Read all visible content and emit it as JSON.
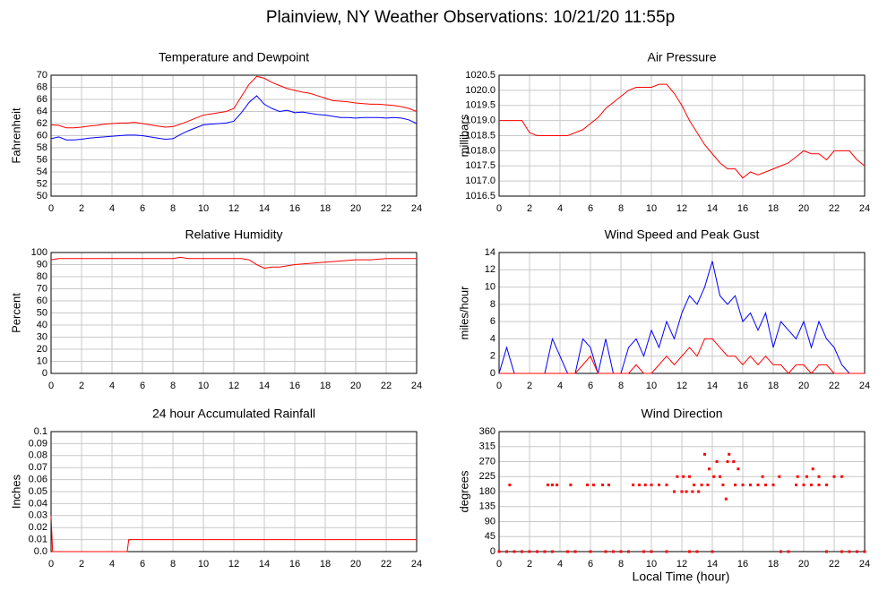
{
  "title": "Plainview, NY Weather Observations: 10/21/20 11:55p",
  "xlabel": "Local Time (hour)",
  "chart_data": [
    {
      "type": "line",
      "title": "Temperature and Dewpoint",
      "ylabel": "Fahrenheit",
      "x": [
        0,
        0.5,
        1,
        1.5,
        2,
        2.5,
        3,
        3.5,
        4,
        4.5,
        5,
        5.5,
        6,
        6.5,
        7,
        7.5,
        8,
        8.5,
        9,
        9.5,
        10,
        10.5,
        11,
        11.5,
        12,
        12.5,
        13,
        13.5,
        14,
        14.5,
        15,
        15.5,
        16,
        16.5,
        17,
        17.5,
        18,
        18.5,
        19,
        19.5,
        20,
        20.5,
        21,
        21.5,
        22,
        22.5,
        23,
        23.5,
        24
      ],
      "series": [
        {
          "color": "#ff0000",
          "values": [
            61.8,
            61.7,
            61.3,
            61.3,
            61.4,
            61.6,
            61.7,
            61.9,
            62.0,
            62.1,
            62.1,
            62.2,
            62.0,
            61.8,
            61.6,
            61.4,
            61.5,
            61.9,
            62.4,
            62.9,
            63.4,
            63.6,
            63.8,
            64.0,
            64.5,
            66.5,
            68.5,
            69.8,
            69.5,
            68.8,
            68.3,
            67.8,
            67.5,
            67.2,
            67.0,
            66.6,
            66.2,
            65.8,
            65.7,
            65.6,
            65.4,
            65.3,
            65.2,
            65.2,
            65.1,
            65.0,
            64.8,
            64.5,
            64.0
          ]
        },
        {
          "color": "#0000ff",
          "values": [
            59.5,
            59.8,
            59.3,
            59.3,
            59.4,
            59.6,
            59.7,
            59.8,
            59.9,
            60.0,
            60.1,
            60.1,
            60.0,
            59.8,
            59.6,
            59.4,
            59.5,
            60.2,
            60.8,
            61.3,
            61.8,
            61.9,
            62.0,
            62.1,
            62.4,
            63.8,
            65.5,
            66.6,
            65.2,
            64.5,
            64.0,
            64.2,
            63.8,
            63.9,
            63.7,
            63.5,
            63.4,
            63.2,
            63.0,
            63.0,
            62.9,
            63.0,
            63.0,
            63.0,
            62.9,
            63.0,
            62.9,
            62.6,
            62.0
          ]
        }
      ],
      "xlim": [
        0,
        24
      ],
      "xticks": [
        0,
        2,
        4,
        6,
        8,
        10,
        12,
        14,
        16,
        18,
        20,
        22,
        24
      ],
      "ylim": [
        50,
        70
      ],
      "yticks": [
        50,
        52,
        54,
        56,
        58,
        60,
        62,
        64,
        66,
        68,
        70
      ],
      "grid": true
    },
    {
      "type": "line",
      "title": "Air Pressure",
      "ylabel": "millibars",
      "x": [
        0,
        0.5,
        1,
        1.5,
        2,
        2.5,
        3,
        3.5,
        4,
        4.5,
        5,
        5.5,
        6,
        6.5,
        7,
        7.5,
        8,
        8.5,
        9,
        9.5,
        10,
        10.5,
        11,
        11.5,
        12,
        12.5,
        13,
        13.5,
        14,
        14.5,
        15,
        15.5,
        16,
        16.5,
        17,
        17.5,
        18,
        18.5,
        19,
        19.5,
        20,
        20.5,
        21,
        21.5,
        22,
        22.5,
        23,
        23.5,
        24
      ],
      "series": [
        {
          "color": "#ff0000",
          "values": [
            1019.0,
            1019.0,
            1019.0,
            1019.0,
            1018.6,
            1018.5,
            1018.5,
            1018.5,
            1018.5,
            1018.5,
            1018.6,
            1018.7,
            1018.9,
            1019.1,
            1019.4,
            1019.6,
            1019.8,
            1020.0,
            1020.1,
            1020.1,
            1020.1,
            1020.2,
            1020.2,
            1019.9,
            1019.5,
            1019.0,
            1018.6,
            1018.2,
            1017.9,
            1017.6,
            1017.4,
            1017.4,
            1017.1,
            1017.3,
            1017.2,
            1017.3,
            1017.4,
            1017.5,
            1017.6,
            1017.8,
            1018.0,
            1017.9,
            1017.9,
            1017.7,
            1018.0,
            1018.0,
            1018.0,
            1017.7,
            1017.5
          ]
        }
      ],
      "xlim": [
        0,
        24
      ],
      "xticks": [
        0,
        2,
        4,
        6,
        8,
        10,
        12,
        14,
        16,
        18,
        20,
        22,
        24
      ],
      "ylim": [
        1016.5,
        1020.5
      ],
      "yticks": [
        1016.5,
        {
          "value": 1017,
          "label": "1017.0"
        },
        1017.5,
        {
          "value": 1018,
          "label": "1018.0"
        },
        1018.5,
        {
          "value": 1019,
          "label": "1019.0"
        },
        1019.5,
        {
          "value": 1020,
          "label": "1020.0"
        },
        1020.5
      ],
      "grid": true
    },
    {
      "type": "line",
      "title": "Relative Humidity",
      "ylabel": "Percent",
      "x": [
        0,
        0.5,
        2,
        4,
        6,
        8,
        8.5,
        9,
        10,
        12,
        12.5,
        13,
        13.5,
        14,
        14.5,
        15,
        15.5,
        16,
        17,
        18,
        19,
        20,
        21,
        22,
        23,
        24
      ],
      "series": [
        {
          "color": "#ff0000",
          "values": [
            94,
            95,
            95,
            95,
            95,
            95,
            96,
            95,
            95,
            95,
            95,
            94,
            90,
            87,
            88,
            88,
            89,
            90,
            91,
            92,
            93,
            94,
            94,
            95,
            95,
            95
          ]
        }
      ],
      "xlim": [
        0,
        24
      ],
      "xticks": [
        0,
        2,
        4,
        6,
        8,
        10,
        12,
        14,
        16,
        18,
        20,
        22,
        24
      ],
      "ylim": [
        0,
        100
      ],
      "yticks": [
        0,
        10,
        20,
        30,
        40,
        50,
        60,
        70,
        80,
        90,
        100
      ],
      "grid": true
    },
    {
      "type": "line",
      "title": "Wind Speed and Peak Gust",
      "ylabel": "miles/hour",
      "x": [
        0,
        0.5,
        1,
        1.5,
        2,
        2.5,
        3,
        3.5,
        4,
        4.5,
        5,
        5.5,
        6,
        6.5,
        7,
        7.5,
        8,
        8.5,
        9,
        9.5,
        10,
        10.5,
        11,
        11.5,
        12,
        12.5,
        13,
        13.5,
        14,
        14.5,
        15,
        15.5,
        16,
        16.5,
        17,
        17.5,
        18,
        18.5,
        19,
        19.5,
        20,
        20.5,
        21,
        21.5,
        22,
        22.5,
        23,
        23.5,
        24
      ],
      "series": [
        {
          "color": "#0000ff",
          "values": [
            0,
            3,
            0,
            0,
            0,
            0,
            0,
            4,
            2,
            0,
            0,
            4,
            3,
            0,
            4,
            0,
            0,
            3,
            4,
            2,
            5,
            3,
            6,
            4,
            7,
            9,
            8,
            10,
            13,
            9,
            8,
            9,
            6,
            7,
            5,
            7,
            3,
            6,
            5,
            4,
            6,
            3,
            6,
            4,
            3,
            1,
            0,
            0,
            0
          ]
        },
        {
          "color": "#ff0000",
          "values": [
            0,
            0,
            0,
            0,
            0,
            0,
            0,
            0,
            0,
            0,
            0,
            1,
            2,
            0,
            0,
            0,
            0,
            0,
            1,
            0,
            0,
            1,
            2,
            1,
            2,
            3,
            2,
            4,
            4,
            3,
            2,
            2,
            1,
            2,
            1,
            2,
            1,
            1,
            0,
            1,
            1,
            0,
            1,
            1,
            0,
            0,
            0,
            0,
            0
          ]
        }
      ],
      "xlim": [
        0,
        24
      ],
      "xticks": [
        0,
        2,
        4,
        6,
        8,
        10,
        12,
        14,
        16,
        18,
        20,
        22,
        24
      ],
      "ylim": [
        0,
        14
      ],
      "yticks": [
        0,
        2,
        4,
        6,
        8,
        10,
        12,
        14
      ],
      "grid": true
    },
    {
      "type": "line",
      "title": "24 hour Accumulated Rainfall",
      "ylabel": "Inches",
      "x": [
        0,
        0.1,
        5,
        5.1,
        24
      ],
      "series": [
        {
          "color": "#ff0000",
          "values": [
            0.03,
            0,
            0,
            0.01,
            0.01
          ]
        }
      ],
      "xlim": [
        0,
        24
      ],
      "xticks": [
        0,
        2,
        4,
        6,
        8,
        10,
        12,
        14,
        16,
        18,
        20,
        22,
        24
      ],
      "ylim": [
        0,
        0.1
      ],
      "yticks": [
        {
          "value": 0,
          "label": "0.0"
        },
        0.01,
        0.02,
        0.03,
        0.04,
        0.05,
        0.06,
        0.07,
        0.08,
        0.09,
        0.1
      ],
      "grid": true
    },
    {
      "type": "scatter",
      "title": "Wind Direction",
      "ylabel": "degrees",
      "x": [
        0,
        0.5,
        1,
        1.5,
        2,
        2.5,
        3,
        3.5,
        4.5,
        5,
        6,
        7,
        7.5,
        8,
        8.5,
        9.5,
        10,
        11,
        12.5,
        13,
        14,
        18.5,
        19,
        21.5,
        22.5,
        23,
        23.5,
        24,
        0.7,
        3.2,
        3.5,
        3.8,
        4.7,
        5.8,
        6.2,
        6.8,
        7.2,
        8.8,
        9.2,
        9.6,
        10,
        10.5,
        11,
        12.8,
        13.3,
        13.7,
        14.7,
        15.5,
        16,
        16.5,
        17,
        17.5,
        18,
        19.5,
        20,
        20.5,
        21,
        21.5,
        11.7,
        12.1,
        12.5,
        14.1,
        14.5,
        17.3,
        18.4,
        19.6,
        20.2,
        21,
        22,
        22.5,
        11.5,
        12,
        12.3,
        12.7,
        13.1,
        14.3,
        15,
        15.4,
        13.5,
        15.1,
        13.8,
        15.7,
        20.6,
        14.9
      ],
      "series": [
        {
          "color": "#ff0000",
          "values": [
            0,
            0,
            0,
            0,
            0,
            0,
            0,
            0,
            0,
            0,
            0,
            0,
            0,
            0,
            0,
            0,
            0,
            0,
            0,
            0,
            0,
            0,
            0,
            0,
            0,
            0,
            0,
            0,
            200,
            200,
            200,
            200,
            200,
            200,
            200,
            200,
            200,
            200,
            200,
            200,
            200,
            200,
            200,
            200,
            200,
            200,
            200,
            200,
            200,
            200,
            200,
            200,
            200,
            200,
            200,
            200,
            200,
            200,
            225,
            225,
            225,
            225,
            225,
            225,
            225,
            225,
            225,
            225,
            225,
            225,
            180,
            180,
            180,
            180,
            180,
            270,
            270,
            270,
            292,
            292,
            248,
            248,
            248,
            158
          ]
        }
      ],
      "xlim": [
        0,
        24
      ],
      "xticks": [
        0,
        2,
        4,
        6,
        8,
        10,
        12,
        14,
        16,
        18,
        20,
        22,
        24
      ],
      "ylim": [
        0,
        360
      ],
      "yticks": [
        0,
        45,
        90,
        135,
        180,
        225,
        270,
        315,
        360
      ],
      "grid": true
    }
  ]
}
